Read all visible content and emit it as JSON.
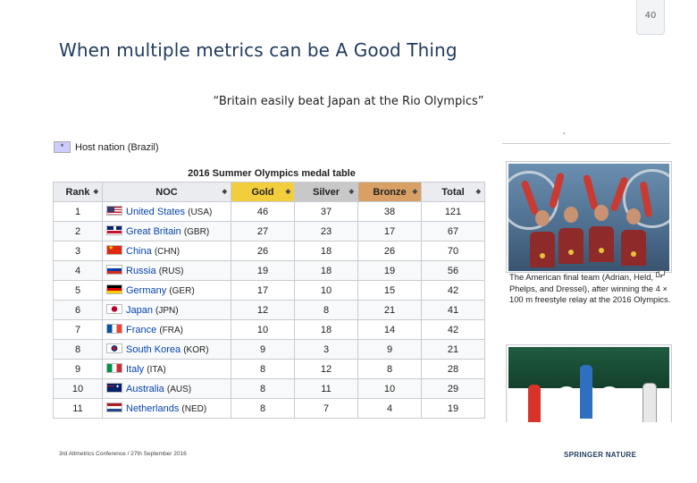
{
  "page_number": "40",
  "title": "When multiple metrics can be A Good Thing",
  "quote": "“Britain easily beat Japan at the Rio Olympics”",
  "host_note": {
    "marker": "*",
    "label": "Host nation (Brazil)"
  },
  "table_caption": "2016 Summer Olympics medal table",
  "columns": [
    "Rank",
    "NOC",
    "Gold",
    "Silver",
    "Bronze",
    "Total"
  ],
  "rows": [
    {
      "rank": "1",
      "country": "United States",
      "code": "(USA)",
      "flag": "us",
      "gold": "46",
      "silver": "37",
      "bronze": "38",
      "total": "121"
    },
    {
      "rank": "2",
      "country": "Great Britain",
      "code": "(GBR)",
      "flag": "gb",
      "gold": "27",
      "silver": "23",
      "bronze": "17",
      "total": "67"
    },
    {
      "rank": "3",
      "country": "China",
      "code": "(CHN)",
      "flag": "cn",
      "gold": "26",
      "silver": "18",
      "bronze": "26",
      "total": "70"
    },
    {
      "rank": "4",
      "country": "Russia",
      "code": "(RUS)",
      "flag": "ru",
      "gold": "19",
      "silver": "18",
      "bronze": "19",
      "total": "56"
    },
    {
      "rank": "5",
      "country": "Germany",
      "code": "(GER)",
      "flag": "de",
      "gold": "17",
      "silver": "10",
      "bronze": "15",
      "total": "42"
    },
    {
      "rank": "6",
      "country": "Japan",
      "code": "(JPN)",
      "flag": "jp",
      "gold": "12",
      "silver": "8",
      "bronze": "21",
      "total": "41"
    },
    {
      "rank": "7",
      "country": "France",
      "code": "(FRA)",
      "flag": "fr",
      "gold": "10",
      "silver": "18",
      "bronze": "14",
      "total": "42"
    },
    {
      "rank": "8",
      "country": "South Korea",
      "code": "(KOR)",
      "flag": "kr",
      "gold": "9",
      "silver": "3",
      "bronze": "9",
      "total": "21"
    },
    {
      "rank": "9",
      "country": "Italy",
      "code": "(ITA)",
      "flag": "it",
      "gold": "8",
      "silver": "12",
      "bronze": "8",
      "total": "28"
    },
    {
      "rank": "10",
      "country": "Australia",
      "code": "(AUS)",
      "flag": "au",
      "gold": "8",
      "silver": "11",
      "bronze": "10",
      "total": "29"
    },
    {
      "rank": "11",
      "country": "Netherlands",
      "code": "(NED)",
      "flag": "nl",
      "gold": "8",
      "silver": "7",
      "bronze": "4",
      "total": "19"
    }
  ],
  "photo_caption": "The American final team (Adrian, Held, Phelps, and Dressel), after winning the 4 × 100 m freestyle relay at the 2016 Olympics.",
  "footer_text": "3rd Altmetrics Conference / 27th September 2016",
  "brand": "SPRINGER NATURE"
}
